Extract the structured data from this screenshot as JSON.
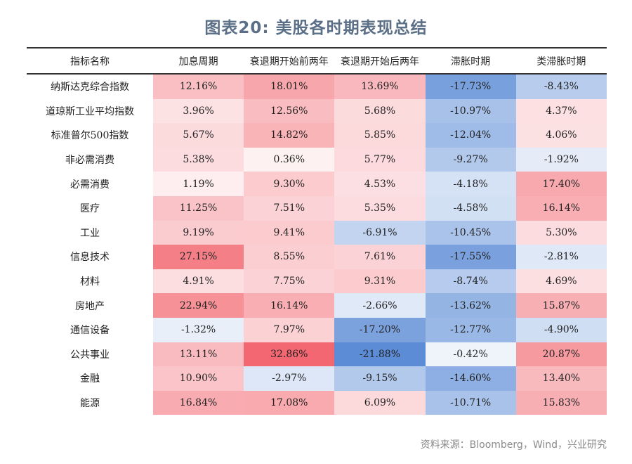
{
  "title": "图表20: 美股各时期表现总结",
  "source": "资料来源：Bloomberg，Wind，兴业研究",
  "table": {
    "headers": [
      "指标名称",
      "加息周期",
      "衰退期开始前两年",
      "衰退期开始后两年",
      "滞胀时期",
      "类滞胀时期"
    ],
    "rows": [
      {
        "name": "纳斯达克综合指数",
        "values": [
          12.16,
          18.01,
          13.69,
          -17.73,
          -8.43
        ]
      },
      {
        "name": "道琼斯工业平均指数",
        "values": [
          3.96,
          12.56,
          5.68,
          -10.97,
          4.37
        ]
      },
      {
        "name": "标准普尔500指数",
        "values": [
          5.67,
          14.82,
          5.85,
          -12.04,
          4.06
        ]
      },
      {
        "name": "非必需消费",
        "values": [
          5.38,
          0.36,
          5.77,
          -9.27,
          -1.92
        ]
      },
      {
        "name": "必需消费",
        "values": [
          1.19,
          9.3,
          4.53,
          -4.18,
          17.4
        ]
      },
      {
        "name": "医疗",
        "values": [
          11.25,
          7.51,
          5.35,
          -4.58,
          16.14
        ]
      },
      {
        "name": "工业",
        "values": [
          9.19,
          9.41,
          -6.91,
          -10.45,
          5.3
        ]
      },
      {
        "name": "信息技术",
        "values": [
          27.15,
          8.55,
          7.61,
          -17.55,
          -2.81
        ]
      },
      {
        "name": "材料",
        "values": [
          4.91,
          7.75,
          9.31,
          -8.74,
          4.69
        ]
      },
      {
        "name": "房地产",
        "values": [
          22.94,
          16.14,
          -2.66,
          -13.62,
          15.87
        ]
      },
      {
        "name": "通信设备",
        "values": [
          -1.32,
          7.97,
          -17.2,
          -12.77,
          -4.9
        ]
      },
      {
        "name": "公共事业",
        "values": [
          13.11,
          32.86,
          -21.88,
          -0.42,
          20.87
        ]
      },
      {
        "name": "金融",
        "values": [
          10.9,
          -2.97,
          -9.15,
          -14.6,
          13.4
        ]
      },
      {
        "name": "能源",
        "values": [
          16.84,
          17.08,
          6.09,
          -10.71,
          15.83
        ]
      }
    ]
  },
  "colors": {
    "positive_max": "#f26670",
    "negative_max": "#5b8bd6",
    "neutral": "#ffffff",
    "title": "#5b6f86"
  }
}
